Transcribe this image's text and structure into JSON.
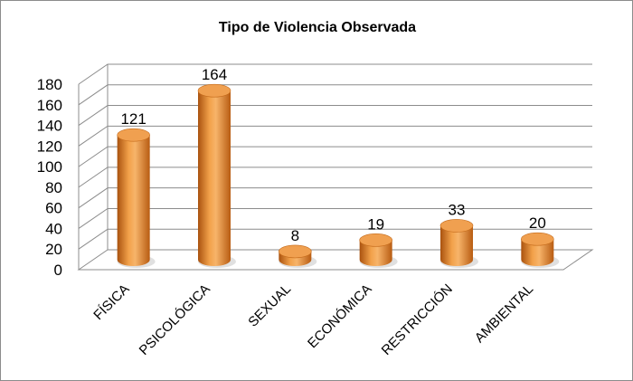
{
  "chart_data": {
    "type": "bar",
    "title": "Tipo de Violencia Observada",
    "categories": [
      "FÍSICA",
      "PSICOLÓGICA",
      "SEXUAL",
      "ECONÓMICA",
      "RESTRICCIÓN",
      "AMBIENTAL"
    ],
    "values": [
      121,
      164,
      8,
      19,
      33,
      20
    ],
    "yticks": [
      "0",
      "20",
      "40",
      "60",
      "80",
      "100",
      "120",
      "140",
      "160",
      "180"
    ],
    "ylim": [
      0,
      180
    ],
    "grid": true,
    "style": "3d-cylinder",
    "bar_color": "#e8862a"
  }
}
